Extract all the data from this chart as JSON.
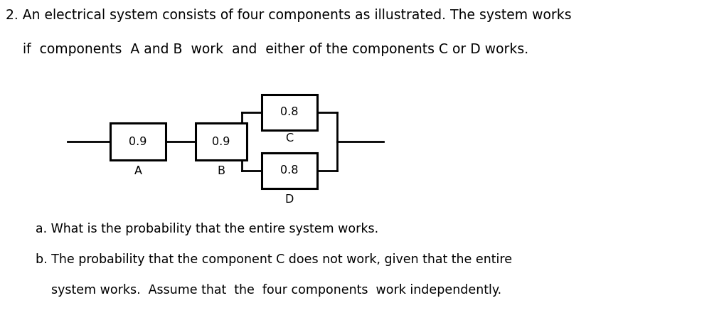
{
  "title_line1": "2. An electrical system consists of four components as illustrated. The system works",
  "title_line2": "    if  components  A and B  work  and  either of the components C or D works.",
  "question_a": "a. What is the probability that the entire system works.",
  "question_b1": "b. The probability that the component C does not work, given that the entire",
  "question_b2": "    system works.  Assume that  the  four components  work independently.",
  "comp_A_label": "A",
  "comp_B_label": "B",
  "comp_C_label": "C",
  "comp_D_label": "D",
  "comp_A_val": "0.9",
  "comp_B_val": "0.9",
  "comp_C_val": "0.8",
  "comp_D_val": "0.8",
  "bg_color": "#ffffff",
  "text_color": "#000000",
  "box_color": "#000000",
  "line_color": "#000000",
  "fig_width": 10.12,
  "fig_height": 4.71,
  "dpi": 100
}
